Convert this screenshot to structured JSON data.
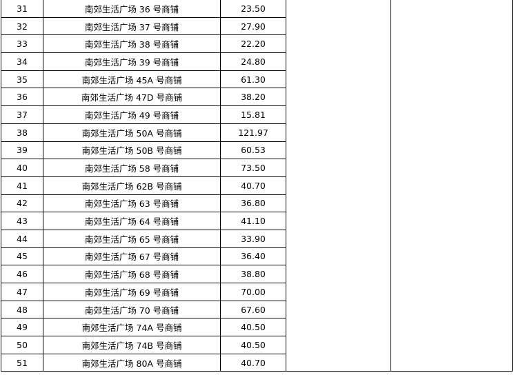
{
  "rows": [
    {
      "no": "31",
      "name": "南郊生活广场 36 号商铺",
      "area": "23.50"
    },
    {
      "no": "32",
      "name": "南郊生活广场 37 号商铺",
      "area": "27.90"
    },
    {
      "no": "33",
      "name": "南郊生活广场 38 号商铺",
      "area": "22.20"
    },
    {
      "no": "34",
      "name": "南郊生活广场 39 号商铺",
      "area": "24.80"
    },
    {
      "no": "35",
      "name": "南郊生活广场 45A 号商铺",
      "area": "61.30"
    },
    {
      "no": "36",
      "name": "南郊生活广场 47D 号商铺",
      "area": "38.20"
    },
    {
      "no": "37",
      "name": "南郊生活广场 49 号商铺",
      "area": "15.81"
    },
    {
      "no": "38",
      "name": "南郊生活广场 50A 号商铺",
      "area": "121.97"
    },
    {
      "no": "39",
      "name": "南郊生活广场 50B 号商铺",
      "area": "60.53"
    },
    {
      "no": "40",
      "name": "南郊生活广场 58 号商铺",
      "area": "73.50"
    },
    {
      "no": "41",
      "name": "南郊生活广场 62B 号商铺",
      "area": "40.70"
    },
    {
      "no": "42",
      "name": "南郊生活广场 63 号商铺",
      "area": "36.80"
    },
    {
      "no": "43",
      "name": "南郊生活广场 64 号商铺",
      "area": "41.10"
    },
    {
      "no": "44",
      "name": "南郊生活广场 65 号商铺",
      "area": "33.90"
    },
    {
      "no": "45",
      "name": "南郊生活广场 67 号商铺",
      "area": "36.40"
    },
    {
      "no": "46",
      "name": "南郊生活广场 68 号商铺",
      "area": "38.80"
    },
    {
      "no": "47",
      "name": "南郊生活广场 69 号商铺",
      "area": "70.00"
    },
    {
      "no": "48",
      "name": "南郊生活广场 70 号商铺",
      "area": "67.60"
    },
    {
      "no": "49",
      "name": "南郊生活广场 74A 号商铺",
      "area": "40.50"
    },
    {
      "no": "50",
      "name": "南郊生活广场 74B 号商铺",
      "area": "40.50"
    },
    {
      "no": "51",
      "name": "南郊生活广场 80A 号商铺",
      "area": "40.70"
    }
  ]
}
